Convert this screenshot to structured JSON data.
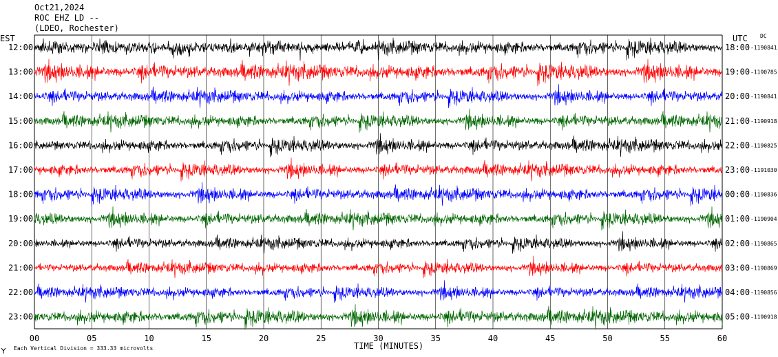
{
  "header": {
    "date": "Oct21,2024",
    "station": "ROC EHZ LD --",
    "network": "(LDEO, Rochester)"
  },
  "left_axis_title": "EST",
  "right_axis_title": "UTC",
  "dc_label": "DC",
  "xlabel": "TIME (MINUTES)",
  "footer": "Each Vertical Division =  333.33 microvolts",
  "footer_icon": "antenna-icon",
  "colors": [
    "#000000",
    "#ff0000",
    "#0000ff",
    "#006600"
  ],
  "chart_data": {
    "type": "line",
    "title": "",
    "xlabel": "TIME (MINUTES)",
    "xlim": [
      0,
      60
    ],
    "x_ticks": [
      "00",
      "05",
      "10",
      "15",
      "20",
      "25",
      "30",
      "35",
      "40",
      "45",
      "50",
      "55",
      "60"
    ],
    "rows": [
      {
        "est": "12:00",
        "utc": "18:00",
        "dc": "-1190841",
        "color": "#000000",
        "amp": 1.0
      },
      {
        "est": "13:00",
        "utc": "19:00",
        "dc": "-1190785",
        "color": "#ff0000",
        "amp": 1.1
      },
      {
        "est": "14:00",
        "utc": "20:00",
        "dc": "-1190841",
        "color": "#0000ff",
        "amp": 0.9
      },
      {
        "est": "15:00",
        "utc": "21:00",
        "dc": "-1190918",
        "color": "#006600",
        "amp": 0.9
      },
      {
        "est": "16:00",
        "utc": "22:00",
        "dc": "-1190825",
        "color": "#000000",
        "amp": 0.9
      },
      {
        "est": "17:00",
        "utc": "23:00",
        "dc": "-1191030",
        "color": "#ff0000",
        "amp": 0.9
      },
      {
        "est": "18:00",
        "utc": "00:00",
        "dc": "-1190836",
        "color": "#0000ff",
        "amp": 0.9
      },
      {
        "est": "19:00",
        "utc": "01:00",
        "dc": "-1190904",
        "color": "#006600",
        "amp": 0.9
      },
      {
        "est": "20:00",
        "utc": "02:00",
        "dc": "-1190865",
        "color": "#000000",
        "amp": 0.8
      },
      {
        "est": "21:00",
        "utc": "03:00",
        "dc": "-1190869",
        "color": "#ff0000",
        "amp": 0.8
      },
      {
        "est": "22:00",
        "utc": "04:00",
        "dc": "-1190856",
        "color": "#0000ff",
        "amp": 0.8
      },
      {
        "est": "23:00",
        "utc": "05:00",
        "dc": "-1190918",
        "color": "#006600",
        "amp": 1.0
      }
    ]
  }
}
